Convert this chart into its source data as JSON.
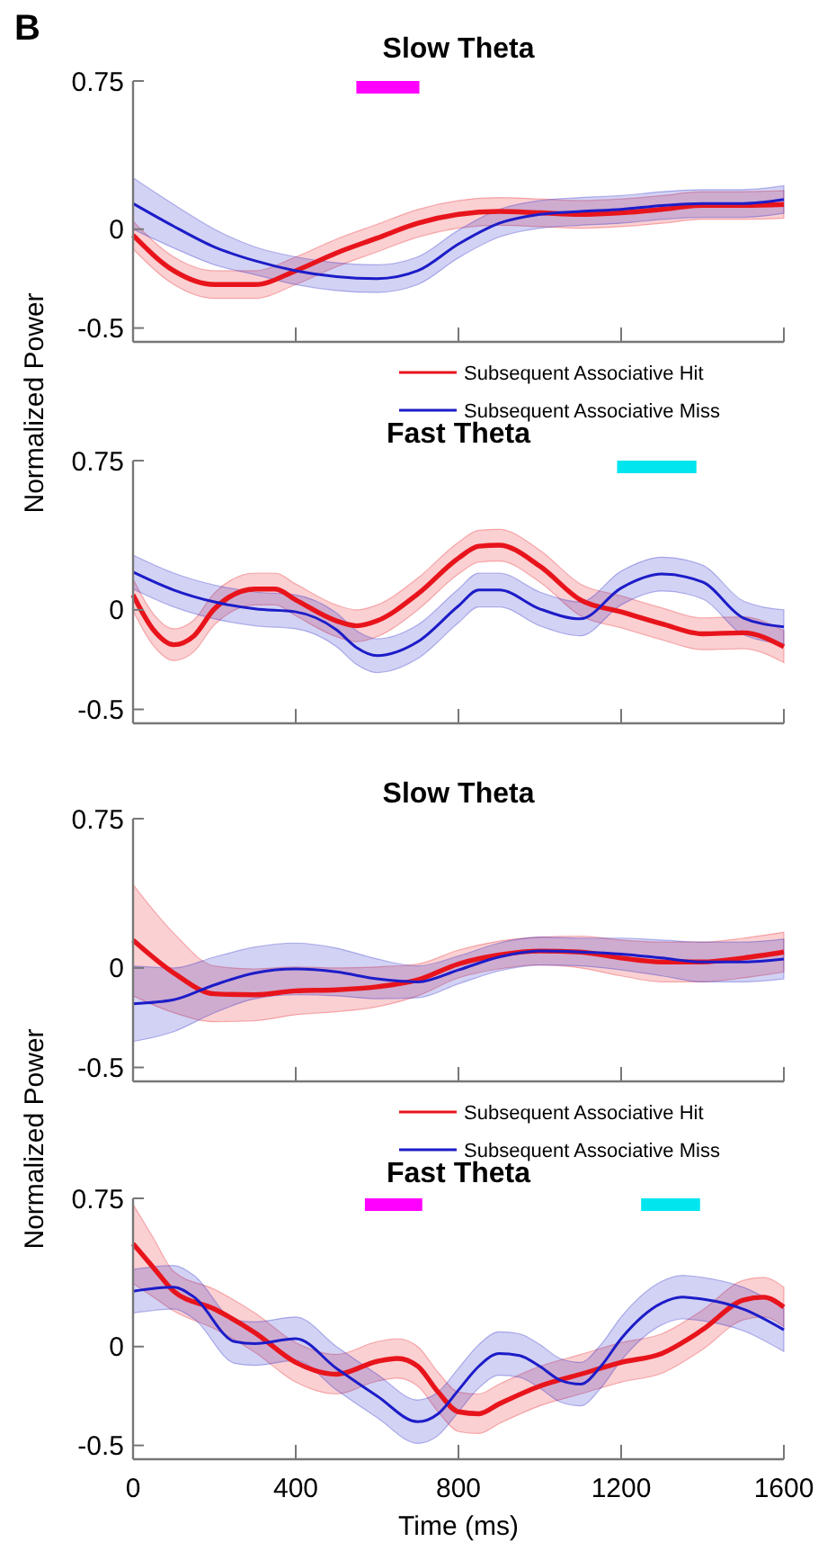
{
  "chart_data": [
    {
      "type": "line",
      "title": "Slow Theta",
      "ylabel": "Normalized Power",
      "annotations": [
        "B"
      ],
      "xlim": [
        0,
        1600
      ],
      "xticks": [
        0,
        400,
        800,
        1200,
        1600
      ],
      "ylim": [
        -0.57,
        0.75
      ],
      "yticks": [
        0.75,
        0,
        -0.5
      ],
      "tick_labels": "y",
      "legend": "bottom right",
      "bands": [
        {
          "axis": "x",
          "from": 549,
          "to": 704,
          "color": "#ff00ff"
        }
      ],
      "series": [
        {
          "name": "Subsequent Associative Hit",
          "color": "#e8141c",
          "x": [
            0,
            100,
            200,
            300,
            400,
            500,
            600,
            700,
            800,
            900,
            1000,
            1100,
            1200,
            1300,
            1400,
            1500,
            1600
          ],
          "values": [
            -0.03,
            -0.21,
            -0.28,
            -0.28,
            -0.21,
            -0.12,
            -0.045,
            0.03,
            0.075,
            0.09,
            0.083,
            0.075,
            0.083,
            0.1,
            0.12,
            0.12,
            0.125
          ],
          "lower": [
            -0.1,
            -0.28,
            -0.35,
            -0.35,
            -0.28,
            -0.19,
            -0.115,
            -0.04,
            0.005,
            0.02,
            0.013,
            0.005,
            0.013,
            0.03,
            0.05,
            0.05,
            0.055
          ],
          "upper": [
            0.04,
            -0.14,
            -0.21,
            -0.21,
            -0.14,
            -0.05,
            0.025,
            0.1,
            0.145,
            0.16,
            0.153,
            0.145,
            0.153,
            0.17,
            0.19,
            0.19,
            0.195
          ]
        },
        {
          "name": "Subsequent Associative Miss",
          "color": "#1c1cc8",
          "x": [
            0,
            100,
            200,
            300,
            400,
            500,
            600,
            700,
            800,
            900,
            1000,
            1100,
            1200,
            1300,
            1400,
            1500,
            1600
          ],
          "values": [
            0.13,
            0.015,
            -0.09,
            -0.16,
            -0.21,
            -0.24,
            -0.25,
            -0.21,
            -0.075,
            0.03,
            0.075,
            0.09,
            0.1,
            0.12,
            0.13,
            0.13,
            0.15
          ],
          "lower": [
            0,
            -0.095,
            -0.18,
            -0.23,
            -0.28,
            -0.31,
            -0.32,
            -0.28,
            -0.145,
            -0.04,
            0.005,
            0.02,
            0.03,
            0.05,
            0.06,
            0.06,
            0.08
          ],
          "upper": [
            0.26,
            0.125,
            0,
            -0.09,
            -0.14,
            -0.17,
            -0.18,
            -0.14,
            -0.005,
            0.1,
            0.145,
            0.16,
            0.17,
            0.19,
            0.2,
            0.2,
            0.22
          ]
        }
      ]
    },
    {
      "type": "line",
      "title": "Fast Theta",
      "xlim": [
        0,
        1600
      ],
      "xticks": [
        0,
        400,
        800,
        1200,
        1600
      ],
      "ylim": [
        -0.57,
        0.75
      ],
      "yticks": [
        0.75,
        0,
        -0.5
      ],
      "tick_labels": "y",
      "bands": [
        {
          "axis": "x",
          "from": 1190,
          "to": 1385,
          "color": "#00e5ee"
        }
      ],
      "series": [
        {
          "color": "#e8141c",
          "x": [
            0,
            50,
            100,
            150,
            200,
            300,
            350,
            400,
            500,
            550,
            600,
            700,
            800,
            850,
            900,
            1000,
            1100,
            1200,
            1300,
            1400,
            1500,
            1600
          ],
          "values": [
            0.075,
            -0.1,
            -0.175,
            -0.13,
            0.005,
            0.105,
            0.105,
            0.05,
            -0.055,
            -0.08,
            -0.055,
            0.08,
            0.26,
            0.32,
            0.325,
            0.22,
            0.05,
            -0.01,
            -0.07,
            -0.12,
            -0.115,
            -0.185
          ],
          "lower": [
            -0.005,
            -0.18,
            -0.255,
            -0.21,
            -0.075,
            0.025,
            0.025,
            -0.03,
            -0.135,
            -0.16,
            -0.135,
            0,
            0.18,
            0.24,
            0.245,
            0.14,
            -0.03,
            -0.09,
            -0.15,
            -0.2,
            -0.195,
            -0.265
          ],
          "upper": [
            0.155,
            -0.02,
            -0.095,
            -0.05,
            0.085,
            0.185,
            0.185,
            0.13,
            0.025,
            0,
            0.025,
            0.16,
            0.34,
            0.4,
            0.405,
            0.3,
            0.13,
            0.07,
            0.01,
            -0.04,
            -0.035,
            -0.105
          ]
        },
        {
          "color": "#1c1cc8",
          "x": [
            0,
            100,
            200,
            300,
            400,
            500,
            550,
            600,
            700,
            800,
            850,
            900,
            1000,
            1100,
            1200,
            1300,
            1400,
            1500,
            1600
          ],
          "values": [
            0.19,
            0.1,
            0.04,
            0.005,
            -0.01,
            -0.1,
            -0.19,
            -0.23,
            -0.16,
            0.02,
            0.1,
            0.1,
            0.005,
            -0.045,
            0.11,
            0.18,
            0.14,
            -0.04,
            -0.085
          ],
          "lower": [
            0.105,
            0.015,
            -0.045,
            -0.08,
            -0.095,
            -0.185,
            -0.275,
            -0.315,
            -0.245,
            -0.065,
            0.015,
            0.015,
            -0.08,
            -0.13,
            0.025,
            0.095,
            0.055,
            -0.125,
            -0.17
          ],
          "upper": [
            0.275,
            0.185,
            0.125,
            0.09,
            0.075,
            -0.015,
            -0.105,
            -0.145,
            -0.075,
            0.105,
            0.185,
            0.185,
            0.09,
            0.04,
            0.195,
            0.265,
            0.225,
            0.045,
            0
          ]
        }
      ]
    },
    {
      "type": "line",
      "title": "Slow Theta",
      "ylabel": "Normalized Power",
      "xlim": [
        0,
        1600
      ],
      "xticks": [
        0,
        400,
        800,
        1200,
        1600
      ],
      "ylim": [
        -0.57,
        0.75
      ],
      "yticks": [
        0.75,
        0,
        -0.5
      ],
      "tick_labels": "y",
      "legend": "bottom right",
      "series": [
        {
          "name": "Subsequent Associative Hit",
          "color": "#e8141c",
          "x": [
            0,
            100,
            200,
            300,
            400,
            500,
            600,
            700,
            800,
            900,
            1000,
            1100,
            1200,
            1300,
            1400,
            1500,
            1600
          ],
          "values": [
            0.14,
            -0.025,
            -0.13,
            -0.135,
            -0.115,
            -0.11,
            -0.095,
            -0.06,
            0.02,
            0.065,
            0.085,
            0.08,
            0.05,
            0.03,
            0.03,
            0.05,
            0.08
          ],
          "lower": [
            -0.14,
            -0.225,
            -0.27,
            -0.265,
            -0.235,
            -0.22,
            -0.195,
            -0.14,
            -0.05,
            -0.005,
            0.015,
            0,
            -0.04,
            -0.07,
            -0.07,
            -0.05,
            -0.02
          ],
          "upper": [
            0.42,
            0.175,
            0.01,
            -0.005,
            0.005,
            0,
            0.005,
            0.02,
            0.09,
            0.135,
            0.155,
            0.16,
            0.14,
            0.13,
            0.13,
            0.15,
            0.18
          ]
        },
        {
          "name": "Subsequent Associative Miss",
          "color": "#1c1cc8",
          "x": [
            0,
            100,
            200,
            300,
            400,
            500,
            600,
            700,
            800,
            900,
            1000,
            1100,
            1200,
            1300,
            1400,
            1500,
            1600
          ],
          "values": [
            -0.18,
            -0.16,
            -0.085,
            -0.025,
            -0.005,
            -0.02,
            -0.055,
            -0.07,
            -0.01,
            0.055,
            0.085,
            0.08,
            0.07,
            0.05,
            0.03,
            0.03,
            0.045
          ],
          "lower": [
            -0.37,
            -0.32,
            -0.225,
            -0.155,
            -0.135,
            -0.14,
            -0.155,
            -0.15,
            -0.08,
            -0.015,
            0.015,
            0.01,
            -0.01,
            -0.04,
            -0.07,
            -0.07,
            -0.055
          ],
          "upper": [
            0.01,
            0,
            0.055,
            0.105,
            0.125,
            0.1,
            0.045,
            0.01,
            0.06,
            0.125,
            0.155,
            0.15,
            0.15,
            0.14,
            0.13,
            0.13,
            0.145
          ]
        }
      ]
    },
    {
      "type": "line",
      "title": "Fast Theta",
      "xlabel": "Time (ms)",
      "xlim": [
        0,
        1600
      ],
      "xticks": [
        0,
        400,
        800,
        1200,
        1600
      ],
      "ylim": [
        -0.57,
        0.75
      ],
      "yticks": [
        0.75,
        0,
        -0.5
      ],
      "bands": [
        {
          "axis": "x",
          "from": 570,
          "to": 711,
          "color": "#ff00ff"
        },
        {
          "axis": "x",
          "from": 1249,
          "to": 1394,
          "color": "#00e5ee"
        }
      ],
      "series": [
        {
          "color": "#e8141c",
          "x": [
            0,
            50,
            100,
            200,
            300,
            400,
            500,
            600,
            650,
            700,
            750,
            800,
            850,
            900,
            1000,
            1100,
            1200,
            1300,
            1400,
            1500,
            1550,
            1600
          ],
          "values": [
            0.52,
            0.4,
            0.28,
            0.19,
            0.07,
            -0.08,
            -0.14,
            -0.075,
            -0.06,
            -0.1,
            -0.23,
            -0.33,
            -0.34,
            -0.29,
            -0.2,
            -0.14,
            -0.08,
            -0.035,
            0.085,
            0.235,
            0.25,
            0.2
          ],
          "lower": [
            0.32,
            0.25,
            0.18,
            0.09,
            -0.03,
            -0.18,
            -0.24,
            -0.175,
            -0.16,
            -0.2,
            -0.33,
            -0.43,
            -0.44,
            -0.39,
            -0.3,
            -0.24,
            -0.18,
            -0.135,
            -0.015,
            0.135,
            0.15,
            0.1
          ],
          "upper": [
            0.72,
            0.55,
            0.38,
            0.29,
            0.17,
            0.02,
            -0.04,
            0.025,
            0.04,
            0,
            -0.13,
            -0.23,
            -0.24,
            -0.19,
            -0.1,
            -0.04,
            0.02,
            0.065,
            0.185,
            0.335,
            0.35,
            0.3
          ]
        },
        {
          "color": "#1c1cc8",
          "x": [
            0,
            100,
            150,
            250,
            300,
            400,
            500,
            600,
            700,
            750,
            800,
            850,
            900,
            950,
            1000,
            1050,
            1100,
            1150,
            1200,
            1300,
            1350,
            1400,
            1500,
            1600
          ],
          "values": [
            0.28,
            0.3,
            0.25,
            0.025,
            0.015,
            0.04,
            -0.11,
            -0.25,
            -0.38,
            -0.34,
            -0.22,
            -0.1,
            -0.035,
            -0.045,
            -0.1,
            -0.17,
            -0.19,
            -0.1,
            0.04,
            0.22,
            0.25,
            0.24,
            0.19,
            0.085
          ],
          "lower": [
            0.17,
            0.19,
            0.14,
            -0.085,
            -0.095,
            -0.07,
            -0.22,
            -0.36,
            -0.49,
            -0.45,
            -0.33,
            -0.21,
            -0.145,
            -0.155,
            -0.21,
            -0.28,
            -0.3,
            -0.21,
            -0.07,
            0.11,
            0.14,
            0.13,
            0.08,
            -0.025
          ],
          "upper": [
            0.39,
            0.41,
            0.36,
            0.135,
            0.125,
            0.15,
            0,
            -0.14,
            -0.27,
            -0.23,
            -0.11,
            0.01,
            0.075,
            0.065,
            0.01,
            -0.06,
            -0.08,
            0.01,
            0.15,
            0.33,
            0.36,
            0.35,
            0.3,
            0.195
          ]
        }
      ]
    }
  ]
}
